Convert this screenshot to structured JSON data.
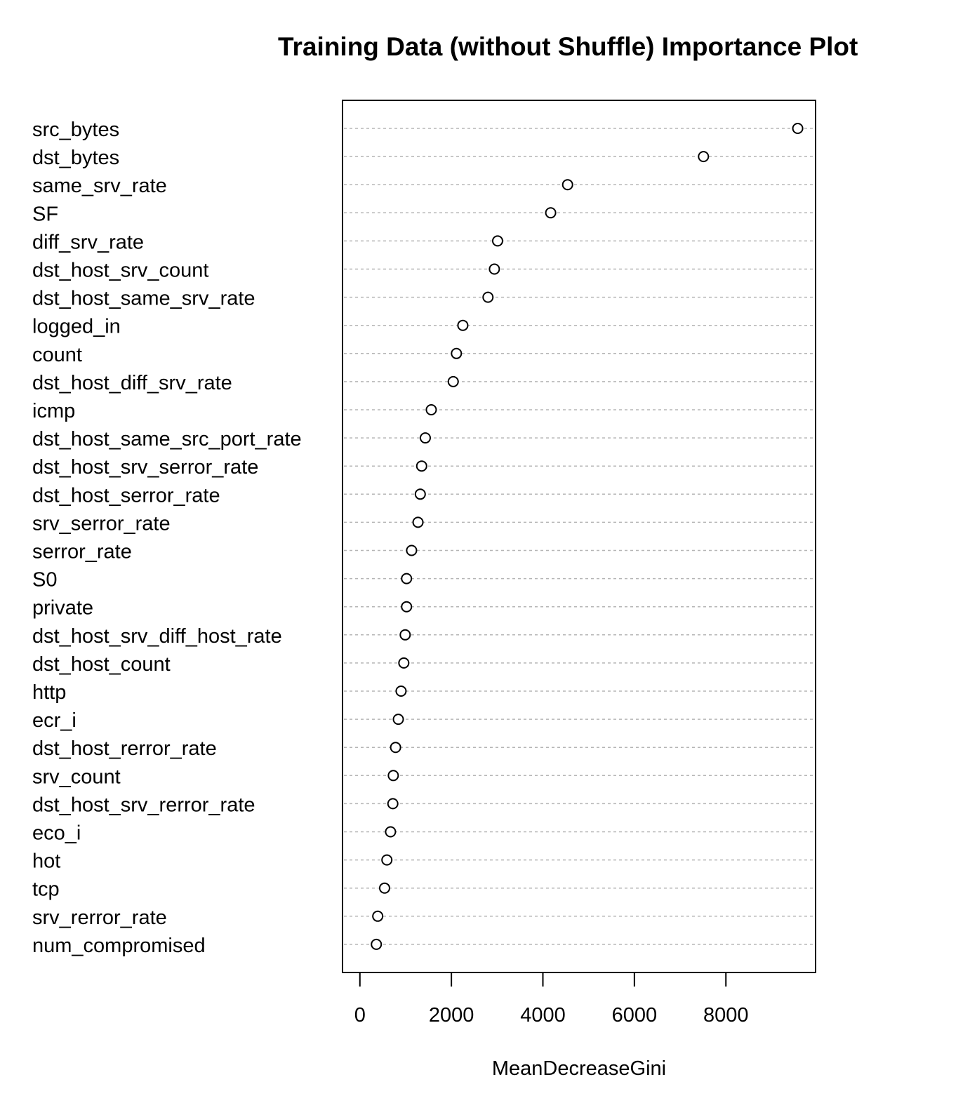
{
  "chart_data": {
    "type": "scatter",
    "title": "Training Data (without Shuffle) Importance Plot",
    "xlabel": "MeanDecreaseGini",
    "ylabel": "",
    "xlim": [
      -380,
      9960
    ],
    "xticks": [
      0,
      2000,
      4000,
      6000,
      8000
    ],
    "grid": "horizontal dotted",
    "legend": "none",
    "categories": [
      "src_bytes",
      "dst_bytes",
      "same_srv_rate",
      "SF",
      "diff_srv_rate",
      "dst_host_srv_count",
      "dst_host_same_srv_rate",
      "logged_in",
      "count",
      "dst_host_diff_srv_rate",
      "icmp",
      "dst_host_same_src_port_rate",
      "dst_host_srv_serror_rate",
      "dst_host_serror_rate",
      "srv_serror_rate",
      "serror_rate",
      "S0",
      "private",
      "dst_host_srv_diff_host_rate",
      "dst_host_count",
      "http",
      "ecr_i",
      "dst_host_rerror_rate",
      "srv_count",
      "dst_host_srv_rerror_rate",
      "eco_i",
      "hot",
      "tcp",
      "srv_rerror_rate",
      "num_compromised"
    ],
    "values": [
      9570,
      7510,
      4540,
      4170,
      3010,
      2940,
      2800,
      2250,
      2110,
      2040,
      1560,
      1430,
      1350,
      1320,
      1270,
      1130,
      1020,
      1020,
      990,
      960,
      900,
      840,
      780,
      730,
      720,
      670,
      590,
      540,
      390,
      360
    ]
  }
}
